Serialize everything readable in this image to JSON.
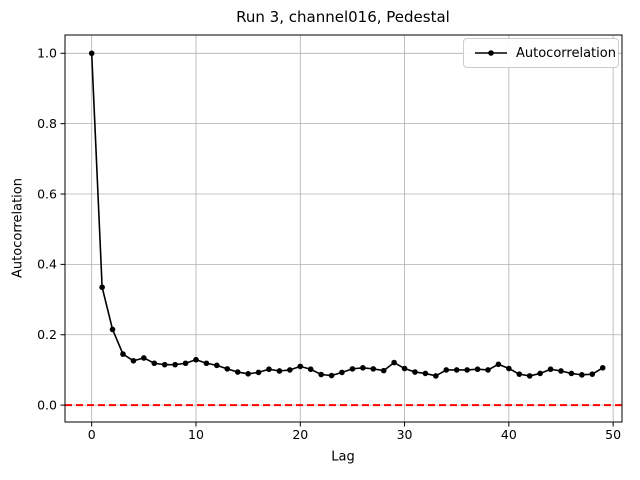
{
  "figure": {
    "title": "Run 3, channel016, Pedestal"
  },
  "legend": {
    "label": "Autocorrelation",
    "position": "upper right"
  },
  "chart_data": {
    "type": "line",
    "title": "Run 3, channel016, Pedestal",
    "xlabel": "Lag",
    "ylabel": "Autocorrelation",
    "x": [
      0,
      1,
      2,
      3,
      4,
      5,
      6,
      7,
      8,
      9,
      10,
      11,
      12,
      13,
      14,
      15,
      16,
      17,
      18,
      19,
      20,
      21,
      22,
      23,
      24,
      25,
      26,
      27,
      28,
      29,
      30,
      31,
      32,
      33,
      34,
      35,
      36,
      37,
      38,
      39,
      40,
      41,
      42,
      43,
      44,
      45,
      46,
      47,
      48,
      49
    ],
    "series": [
      {
        "name": "Autocorrelation",
        "color": "#000000",
        "marker": "circle",
        "values": [
          1.0,
          0.335,
          0.215,
          0.145,
          0.126,
          0.134,
          0.119,
          0.115,
          0.115,
          0.119,
          0.129,
          0.119,
          0.113,
          0.103,
          0.094,
          0.089,
          0.093,
          0.102,
          0.097,
          0.1,
          0.11,
          0.102,
          0.087,
          0.084,
          0.093,
          0.103,
          0.106,
          0.103,
          0.098,
          0.121,
          0.104,
          0.094,
          0.09,
          0.083,
          0.1,
          0.1,
          0.1,
          0.102,
          0.1,
          0.116,
          0.104,
          0.088,
          0.083,
          0.09,
          0.102,
          0.097,
          0.09,
          0.086,
          0.088,
          0.106
        ]
      }
    ],
    "xlim": [
      -2.56,
      50.85
    ],
    "ylim": [
      -0.048,
      1.052
    ],
    "xticks": [
      0,
      10,
      20,
      30,
      40,
      50
    ],
    "yticks": [
      0.0,
      0.2,
      0.4,
      0.6,
      0.8,
      1.0
    ],
    "grid": true,
    "grid_color": "#b0b0b0",
    "zero_line": {
      "y": 0.0,
      "color": "#ff0000",
      "style": "dashed"
    },
    "legend_position": "upper right"
  }
}
